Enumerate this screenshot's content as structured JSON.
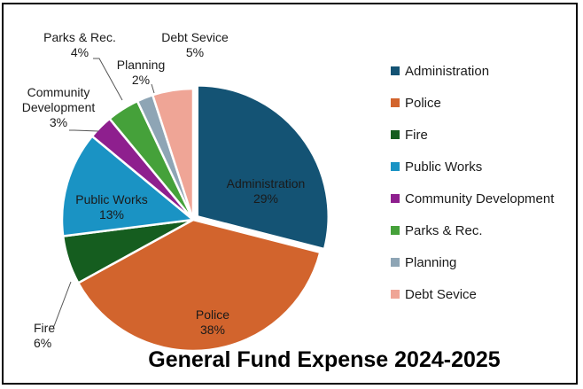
{
  "chart_data": {
    "type": "pie",
    "title": "General Fund Expense 2024-2025",
    "legend_position": "right",
    "categories": [
      "Administration",
      "Police",
      "Fire",
      "Public Works",
      "Community Development",
      "Parks & Rec.",
      "Planning",
      "Debt Sevice"
    ],
    "values": [
      29,
      38,
      6,
      13,
      3,
      4,
      2,
      5
    ],
    "value_labels": [
      "29%",
      "38%",
      "6%",
      "13%",
      "3%",
      "4%",
      "2%",
      "5%"
    ],
    "colors": [
      "#145374",
      "#d2642d",
      "#155d1f",
      "#1a93c4",
      "#8e1f8e",
      "#45a13a",
      "#8ea5b5",
      "#efa596"
    ],
    "exploded": [
      "Administration"
    ]
  }
}
